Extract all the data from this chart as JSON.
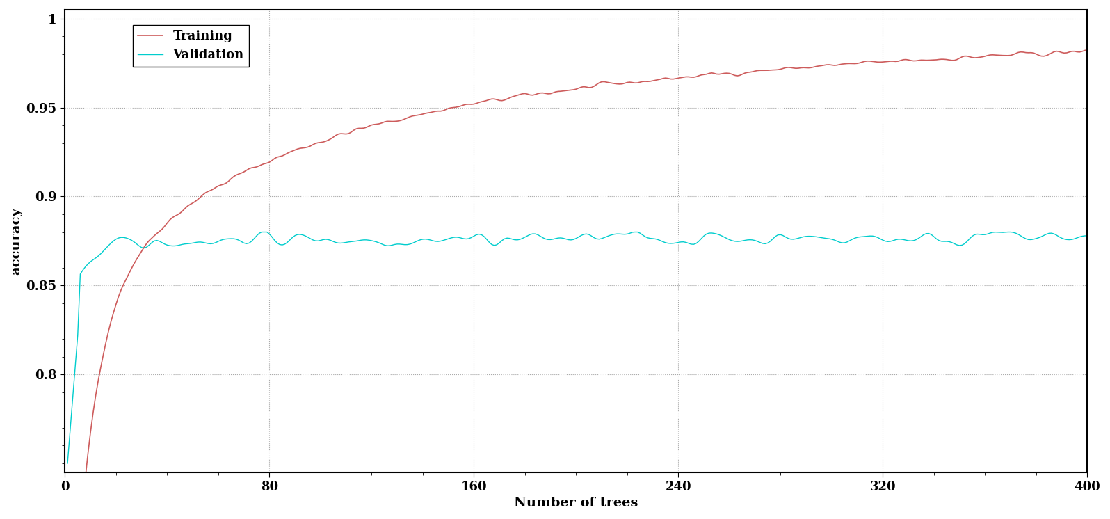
{
  "title": "",
  "xlabel": "Number of trees",
  "ylabel": "accuracy",
  "xlim": [
    0,
    400
  ],
  "ylim": [
    0.745,
    1.005
  ],
  "xticks": [
    0,
    80,
    160,
    240,
    320,
    400
  ],
  "yticks": [
    0.8,
    0.85,
    0.9,
    0.95,
    1.0
  ],
  "training_color": "#cd5c5c",
  "validation_color": "#00cdcd",
  "background_color": "#ffffff",
  "grid_color": "#aaaaaa",
  "legend_labels": [
    "Training",
    "Validation"
  ],
  "n_trees": 400,
  "seed": 42
}
